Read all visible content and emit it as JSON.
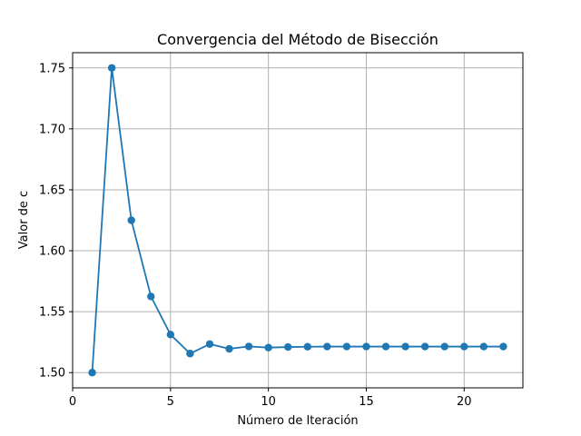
{
  "chart_data": {
    "type": "line",
    "title": "Convergencia del Método de Bisección",
    "xlabel": "Número de Iteración",
    "ylabel": "Valor de c",
    "xlim": [
      0,
      23
    ],
    "ylim": [
      1.4875,
      1.7625
    ],
    "xticks": [
      0,
      5,
      10,
      15,
      20
    ],
    "yticks": [
      1.5,
      1.55,
      1.6,
      1.65,
      1.7,
      1.75
    ],
    "xtick_labels": [
      "0",
      "5",
      "10",
      "15",
      "20"
    ],
    "ytick_labels": [
      "1.50",
      "1.55",
      "1.60",
      "1.65",
      "1.70",
      "1.75"
    ],
    "grid": true,
    "series": [
      {
        "color": "#1f77b4",
        "marker": "circle",
        "x": [
          1,
          2,
          3,
          4,
          5,
          6,
          7,
          8,
          9,
          10,
          11,
          12,
          13,
          14,
          15,
          16,
          17,
          18,
          19,
          20,
          21,
          22
        ],
        "y": [
          1.5,
          1.75,
          1.625,
          1.5625,
          1.53125,
          1.515625,
          1.5234375,
          1.51953125,
          1.521484375,
          1.5205078125,
          1.52099609375,
          1.521240234375,
          1.5213623046875,
          1.52136230469,
          1.52136230469,
          1.52136230469,
          1.52136230469,
          1.52136230469,
          1.52136230469,
          1.52136230469,
          1.52136230469,
          1.52136230469
        ]
      }
    ]
  }
}
